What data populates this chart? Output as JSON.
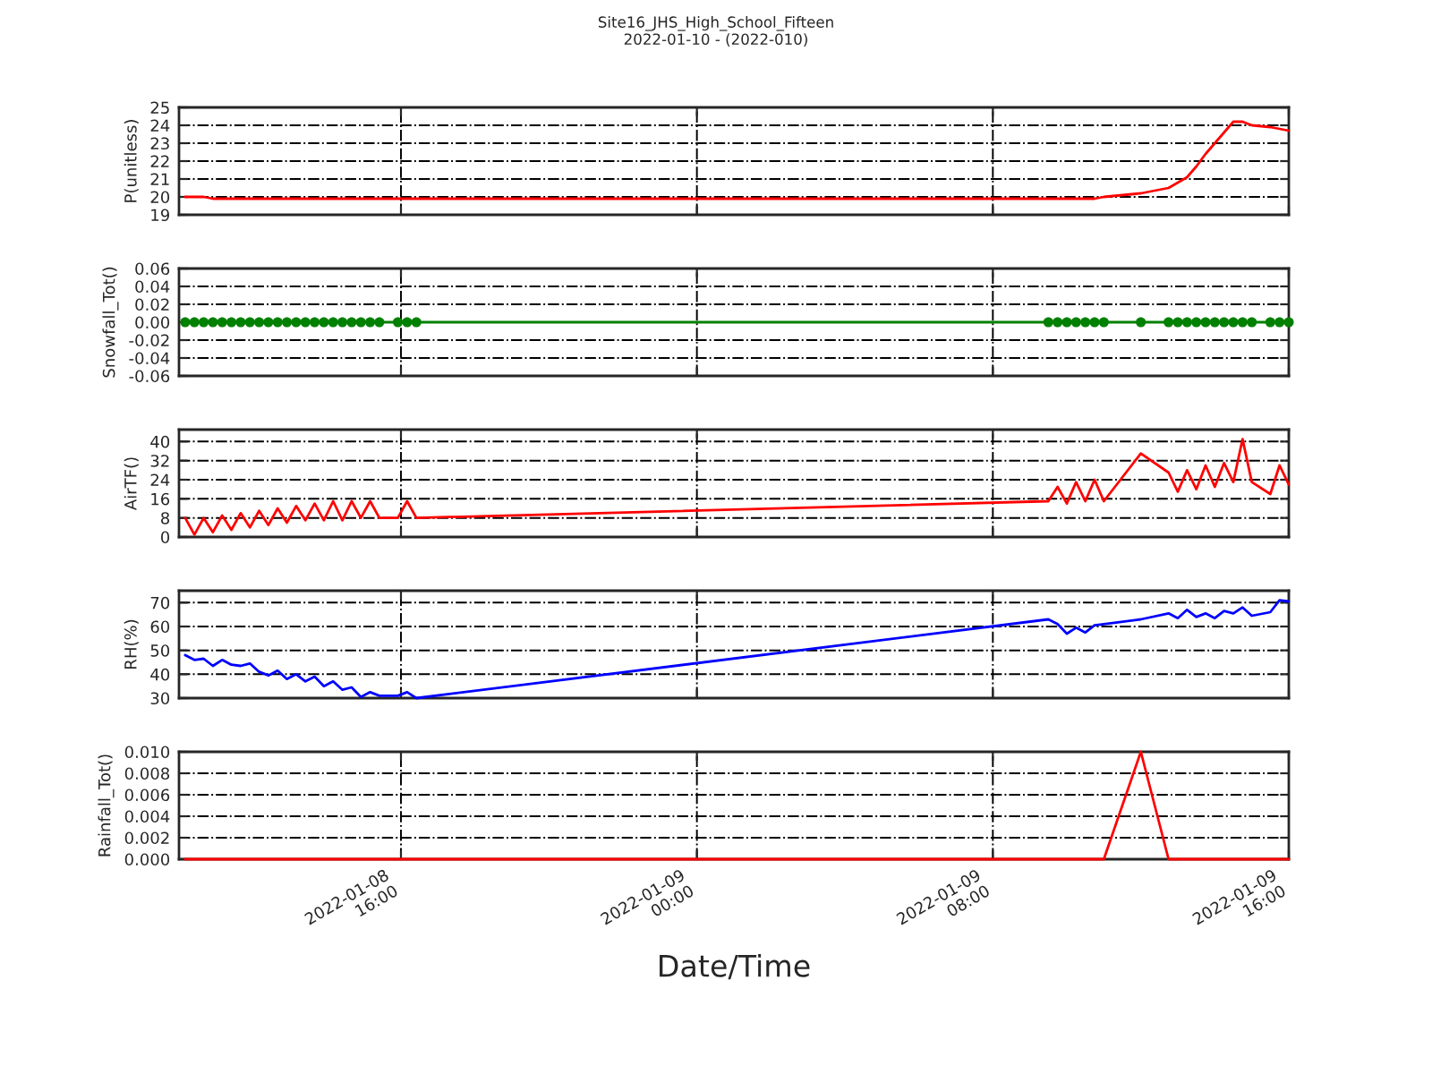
{
  "chart_data": [
    {
      "type": "line",
      "title": "Site16_JHS_High_School_Fifteen\n2022-01-10 - (2022-010)",
      "ylabel": "P(unitless)",
      "x": [
        "2022-01-08T10:10",
        "2022-01-08T10:25",
        "2022-01-08T10:40",
        "2022-01-08T10:55",
        "2022-01-08T11:10",
        "2022-01-08T11:25",
        "2022-01-08T11:40",
        "2022-01-08T11:55",
        "2022-01-08T12:10",
        "2022-01-08T12:25",
        "2022-01-08T12:40",
        "2022-01-08T12:55",
        "2022-01-08T13:10",
        "2022-01-08T13:25",
        "2022-01-08T13:40",
        "2022-01-08T13:55",
        "2022-01-08T14:10",
        "2022-01-08T14:25",
        "2022-01-08T14:40",
        "2022-01-08T14:55",
        "2022-01-08T15:10",
        "2022-01-08T15:25",
        "2022-01-08T15:55",
        "2022-01-08T16:10",
        "2022-01-08T16:25",
        "2022-01-09T09:30",
        "2022-01-09T09:45",
        "2022-01-09T10:00",
        "2022-01-09T10:15",
        "2022-01-09T10:30",
        "2022-01-09T10:45",
        "2022-01-09T11:00",
        "2022-01-09T12:00",
        "2022-01-09T12:45",
        "2022-01-09T13:00",
        "2022-01-09T13:15",
        "2022-01-09T13:30",
        "2022-01-09T13:45",
        "2022-01-09T14:00",
        "2022-01-09T14:15",
        "2022-01-09T14:30",
        "2022-01-09T14:45",
        "2022-01-09T15:00",
        "2022-01-09T15:30",
        "2022-01-09T15:45",
        "2022-01-09T16:00"
      ],
      "series": [
        {
          "color": "#ff0000",
          "values": [
            20.0,
            20.0,
            20.0,
            19.9,
            19.9,
            19.9,
            19.9,
            19.9,
            19.9,
            19.9,
            19.9,
            19.9,
            19.9,
            19.9,
            19.9,
            19.9,
            19.9,
            19.9,
            19.9,
            19.9,
            19.9,
            19.9,
            19.9,
            19.9,
            19.9,
            19.9,
            19.9,
            19.9,
            19.9,
            19.9,
            19.9,
            20.0,
            20.2,
            20.5,
            20.8,
            21.1,
            21.7,
            22.4,
            23.0,
            23.6,
            24.2,
            24.2,
            24.0,
            23.9,
            23.8,
            23.7
          ]
        }
      ],
      "xlim": [
        "2022-01-08T10:00",
        "2022-01-09T16:00"
      ],
      "xticks": [
        {
          "value": "2022-01-08T16:00",
          "label": null
        },
        {
          "value": "2022-01-09T00:00",
          "label": null
        },
        {
          "value": "2022-01-09T08:00",
          "label": null
        },
        {
          "value": "2022-01-09T16:00",
          "label": null
        }
      ],
      "ylim": [
        19,
        25
      ],
      "yticks": [
        19,
        20,
        21,
        22,
        23,
        24,
        25
      ],
      "grid": true,
      "tick_labels": "y",
      "line_style": "solid"
    },
    {
      "type": "line",
      "ylabel": "Snowfall_Tot()",
      "x": [
        "2022-01-08T10:10",
        "2022-01-08T10:25",
        "2022-01-08T10:40",
        "2022-01-08T10:55",
        "2022-01-08T11:10",
        "2022-01-08T11:25",
        "2022-01-08T11:40",
        "2022-01-08T11:55",
        "2022-01-08T12:10",
        "2022-01-08T12:25",
        "2022-01-08T12:40",
        "2022-01-08T12:55",
        "2022-01-08T13:10",
        "2022-01-08T13:25",
        "2022-01-08T13:40",
        "2022-01-08T13:55",
        "2022-01-08T14:10",
        "2022-01-08T14:25",
        "2022-01-08T14:40",
        "2022-01-08T14:55",
        "2022-01-08T15:10",
        "2022-01-08T15:25",
        "2022-01-08T15:55",
        "2022-01-08T16:10",
        "2022-01-08T16:25",
        "2022-01-09T09:30",
        "2022-01-09T09:45",
        "2022-01-09T10:00",
        "2022-01-09T10:15",
        "2022-01-09T10:30",
        "2022-01-09T10:45",
        "2022-01-09T11:00",
        "2022-01-09T12:00",
        "2022-01-09T12:45",
        "2022-01-09T13:00",
        "2022-01-09T13:15",
        "2022-01-09T13:30",
        "2022-01-09T13:45",
        "2022-01-09T14:00",
        "2022-01-09T14:15",
        "2022-01-09T14:30",
        "2022-01-09T14:45",
        "2022-01-09T15:00",
        "2022-01-09T15:30",
        "2022-01-09T15:45",
        "2022-01-09T16:00"
      ],
      "series": [
        {
          "color": "#008000",
          "values": [
            0,
            0,
            0,
            0,
            0,
            0,
            0,
            0,
            0,
            0,
            0,
            0,
            0,
            0,
            0,
            0,
            0,
            0,
            0,
            0,
            0,
            0,
            0,
            0,
            0,
            0,
            0,
            0,
            0,
            0,
            0,
            0,
            0,
            0,
            0,
            0,
            0,
            0,
            0,
            0,
            0,
            0,
            0,
            0,
            0,
            0
          ]
        }
      ],
      "xlim": [
        "2022-01-08T10:00",
        "2022-01-09T16:00"
      ],
      "xticks": [
        {
          "value": "2022-01-08T16:00",
          "label": null
        },
        {
          "value": "2022-01-09T00:00",
          "label": null
        },
        {
          "value": "2022-01-09T08:00",
          "label": null
        },
        {
          "value": "2022-01-09T16:00",
          "label": null
        }
      ],
      "ylim": [
        -0.06,
        0.06
      ],
      "yticks": [
        -0.06,
        -0.04,
        -0.02,
        {
          "value": 0,
          "label": "0.00"
        },
        0.02,
        0.04,
        0.06
      ],
      "grid": true,
      "tick_labels": "y",
      "line_style": "solid",
      "marker": "circle"
    },
    {
      "type": "line",
      "ylabel": "AirTF()",
      "x": [
        "2022-01-08T10:10",
        "2022-01-08T10:25",
        "2022-01-08T10:40",
        "2022-01-08T10:55",
        "2022-01-08T11:10",
        "2022-01-08T11:25",
        "2022-01-08T11:40",
        "2022-01-08T11:55",
        "2022-01-08T12:10",
        "2022-01-08T12:25",
        "2022-01-08T12:40",
        "2022-01-08T12:55",
        "2022-01-08T13:10",
        "2022-01-08T13:25",
        "2022-01-08T13:40",
        "2022-01-08T13:55",
        "2022-01-08T14:10",
        "2022-01-08T14:25",
        "2022-01-08T14:40",
        "2022-01-08T14:55",
        "2022-01-08T15:10",
        "2022-01-08T15:25",
        "2022-01-08T15:55",
        "2022-01-08T16:10",
        "2022-01-08T16:25",
        "2022-01-09T09:30",
        "2022-01-09T09:45",
        "2022-01-09T10:00",
        "2022-01-09T10:15",
        "2022-01-09T10:30",
        "2022-01-09T10:45",
        "2022-01-09T11:00",
        "2022-01-09T12:00",
        "2022-01-09T12:45",
        "2022-01-09T13:00",
        "2022-01-09T13:15",
        "2022-01-09T13:30",
        "2022-01-09T13:45",
        "2022-01-09T14:00",
        "2022-01-09T14:15",
        "2022-01-09T14:30",
        "2022-01-09T14:45",
        "2022-01-09T15:00",
        "2022-01-09T15:30",
        "2022-01-09T15:45",
        "2022-01-09T16:00"
      ],
      "series": [
        {
          "color": "#ff0000",
          "values": [
            8,
            1,
            8,
            2,
            9,
            3,
            10,
            4,
            11,
            5,
            12,
            6,
            13,
            7,
            14,
            7,
            15,
            7,
            15,
            8,
            15,
            8,
            8,
            15,
            8,
            15,
            21,
            14,
            23,
            15,
            24,
            15,
            35,
            27,
            19,
            28,
            20,
            30,
            21,
            31,
            23,
            41,
            23,
            18,
            30,
            22
          ]
        }
      ],
      "xlim": [
        "2022-01-08T10:00",
        "2022-01-09T16:00"
      ],
      "xticks": [
        {
          "value": "2022-01-08T16:00",
          "label": null
        },
        {
          "value": "2022-01-09T00:00",
          "label": null
        },
        {
          "value": "2022-01-09T08:00",
          "label": null
        },
        {
          "value": "2022-01-09T16:00",
          "label": null
        }
      ],
      "ylim": [
        0,
        45
      ],
      "yticks": [
        0,
        8,
        16,
        24,
        32,
        40
      ],
      "grid": true,
      "tick_labels": "y",
      "line_style": "solid"
    },
    {
      "type": "line",
      "ylabel": "RH(%)",
      "x": [
        "2022-01-08T10:10",
        "2022-01-08T10:25",
        "2022-01-08T10:40",
        "2022-01-08T10:55",
        "2022-01-08T11:10",
        "2022-01-08T11:25",
        "2022-01-08T11:40",
        "2022-01-08T11:55",
        "2022-01-08T12:10",
        "2022-01-08T12:25",
        "2022-01-08T12:40",
        "2022-01-08T12:55",
        "2022-01-08T13:10",
        "2022-01-08T13:25",
        "2022-01-08T13:40",
        "2022-01-08T13:55",
        "2022-01-08T14:10",
        "2022-01-08T14:25",
        "2022-01-08T14:40",
        "2022-01-08T14:55",
        "2022-01-08T15:10",
        "2022-01-08T15:25",
        "2022-01-08T15:55",
        "2022-01-08T16:10",
        "2022-01-08T16:25",
        "2022-01-09T09:30",
        "2022-01-09T09:45",
        "2022-01-09T10:00",
        "2022-01-09T10:15",
        "2022-01-09T10:30",
        "2022-01-09T10:45",
        "2022-01-09T11:00",
        "2022-01-09T12:00",
        "2022-01-09T12:45",
        "2022-01-09T13:00",
        "2022-01-09T13:15",
        "2022-01-09T13:30",
        "2022-01-09T13:45",
        "2022-01-09T14:00",
        "2022-01-09T14:15",
        "2022-01-09T14:30",
        "2022-01-09T14:45",
        "2022-01-09T15:00",
        "2022-01-09T15:30",
        "2022-01-09T15:45",
        "2022-01-09T16:00"
      ],
      "series": [
        {
          "color": "#0000ff",
          "values": [
            48,
            46,
            46.5,
            43.5,
            46,
            44,
            43.5,
            44.5,
            41,
            39.5,
            41.5,
            38,
            40,
            37,
            39,
            35,
            37,
            33.5,
            34.5,
            30.5,
            32.5,
            31,
            31,
            32.5,
            30,
            63,
            61,
            57,
            59.5,
            57.5,
            60.5,
            61,
            63,
            65.5,
            63.5,
            67,
            64,
            65.5,
            63.5,
            66.5,
            65.5,
            68,
            64.5,
            66,
            71,
            70.5
          ]
        }
      ],
      "xlim": [
        "2022-01-08T10:00",
        "2022-01-09T16:00"
      ],
      "xticks": [
        {
          "value": "2022-01-08T16:00",
          "label": null
        },
        {
          "value": "2022-01-09T00:00",
          "label": null
        },
        {
          "value": "2022-01-09T08:00",
          "label": null
        },
        {
          "value": "2022-01-09T16:00",
          "label": null
        }
      ],
      "ylim": [
        30,
        75
      ],
      "yticks": [
        30,
        40,
        50,
        60,
        70
      ],
      "grid": true,
      "tick_labels": "y",
      "line_style": "solid"
    },
    {
      "type": "line",
      "ylabel": "Rainfall_Tot()",
      "xlabel": "Date/Time",
      "x": [
        "2022-01-08T10:10",
        "2022-01-08T10:25",
        "2022-01-08T10:40",
        "2022-01-08T10:55",
        "2022-01-08T11:10",
        "2022-01-08T11:25",
        "2022-01-08T11:40",
        "2022-01-08T11:55",
        "2022-01-08T12:10",
        "2022-01-08T12:25",
        "2022-01-08T12:40",
        "2022-01-08T12:55",
        "2022-01-08T13:10",
        "2022-01-08T13:25",
        "2022-01-08T13:40",
        "2022-01-08T13:55",
        "2022-01-08T14:10",
        "2022-01-08T14:25",
        "2022-01-08T14:40",
        "2022-01-08T14:55",
        "2022-01-08T15:10",
        "2022-01-08T15:25",
        "2022-01-08T15:55",
        "2022-01-08T16:10",
        "2022-01-08T16:25",
        "2022-01-09T09:30",
        "2022-01-09T09:45",
        "2022-01-09T10:00",
        "2022-01-09T10:15",
        "2022-01-09T10:30",
        "2022-01-09T10:45",
        "2022-01-09T11:00",
        "2022-01-09T12:00",
        "2022-01-09T12:45",
        "2022-01-09T13:00",
        "2022-01-09T13:15",
        "2022-01-09T13:30",
        "2022-01-09T13:45",
        "2022-01-09T14:00",
        "2022-01-09T14:15",
        "2022-01-09T14:30",
        "2022-01-09T14:45",
        "2022-01-09T15:00",
        "2022-01-09T15:30",
        "2022-01-09T15:45",
        "2022-01-09T16:00"
      ],
      "series": [
        {
          "color": "#ff0000",
          "values": [
            0,
            0,
            0,
            0,
            0,
            0,
            0,
            0,
            0,
            0,
            0,
            0,
            0,
            0,
            0,
            0,
            0,
            0,
            0,
            0,
            0,
            0,
            0,
            0,
            0,
            0,
            0,
            0,
            0,
            0,
            0,
            0,
            0.01,
            0,
            0,
            0,
            0,
            0,
            0,
            0,
            0,
            0,
            0,
            0,
            0,
            0
          ]
        }
      ],
      "xlim": [
        "2022-01-08T10:00",
        "2022-01-09T16:00"
      ],
      "xticks": [
        {
          "value": "2022-01-08T16:00",
          "label": "2022-01-08\n16:00"
        },
        {
          "value": "2022-01-09T00:00",
          "label": "2022-01-09\n00:00"
        },
        {
          "value": "2022-01-09T08:00",
          "label": "2022-01-09\n08:00"
        },
        {
          "value": "2022-01-09T16:00",
          "label": "2022-01-09\n16:00"
        }
      ],
      "ylim": [
        0,
        0.01
      ],
      "yticks": [
        {
          "value": 0,
          "label": "0.000"
        },
        {
          "value": 0.002,
          "label": "0.002"
        },
        {
          "value": 0.004,
          "label": "0.004"
        },
        {
          "value": 0.006,
          "label": "0.006"
        },
        {
          "value": 0.008,
          "label": "0.008"
        },
        {
          "value": 0.01,
          "label": "0.010"
        }
      ],
      "grid": true,
      "line_style": "solid"
    }
  ]
}
